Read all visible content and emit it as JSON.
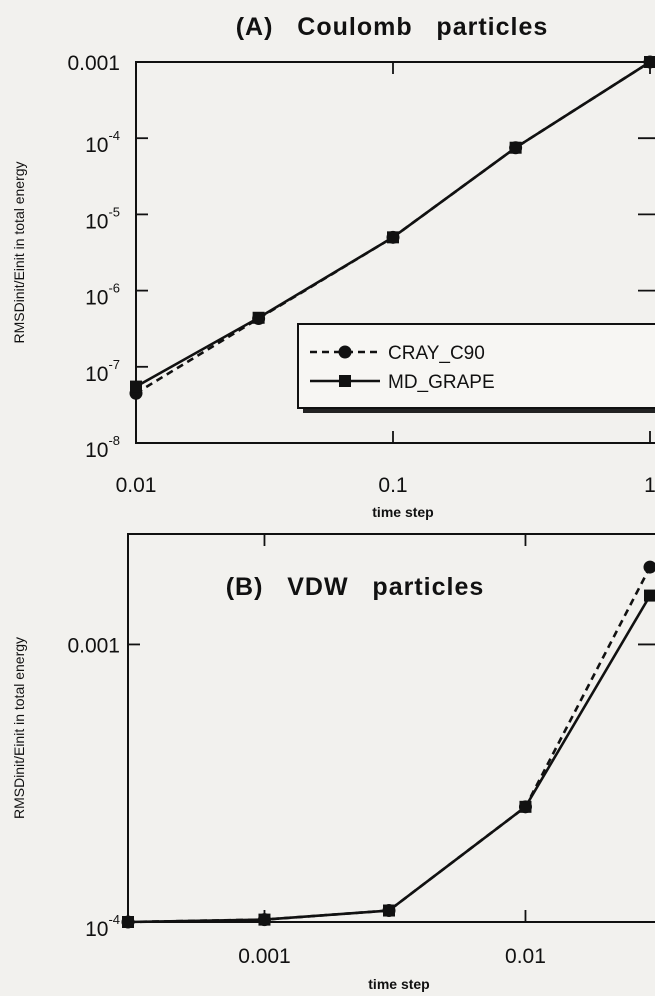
{
  "chart_data": [
    {
      "type": "line",
      "title": "(A)   Coulomb   particles",
      "xlabel": "time step",
      "ylabel": "RMSDinit/Einit in total energy",
      "xscale": "log",
      "yscale": "log",
      "xlim": [
        0.01,
        1
      ],
      "ylim": [
        1e-08,
        0.001
      ],
      "xticks": [
        {
          "value": 0.01,
          "label": "0.01"
        },
        {
          "value": 0.1,
          "label": "0.1"
        },
        {
          "value": 1,
          "label": "1"
        }
      ],
      "yticks": [
        {
          "value": 0.001,
          "base": "0.001",
          "exp": ""
        },
        {
          "value": 0.0001,
          "base": "10",
          "exp": "-4"
        },
        {
          "value": 1e-05,
          "base": "10",
          "exp": "-5"
        },
        {
          "value": 1e-06,
          "base": "10",
          "exp": "-6"
        },
        {
          "value": 1e-07,
          "base": "10",
          "exp": "-7"
        },
        {
          "value": 1e-08,
          "base": "10",
          "exp": "-8"
        }
      ],
      "legend": {
        "position": "center-right",
        "box": true
      },
      "series": [
        {
          "name": "CRAY_C90",
          "style": "dashed",
          "marker": "circle",
          "x": [
            0.01,
            0.03,
            0.1,
            0.3,
            1
          ],
          "y": [
            4.5e-08,
            4.3e-07,
            5e-06,
            7.5e-05,
            0.001
          ]
        },
        {
          "name": "MD_GRAPE",
          "style": "solid",
          "marker": "square",
          "x": [
            0.01,
            0.03,
            0.1,
            0.3,
            1
          ],
          "y": [
            5.5e-08,
            4.4e-07,
            5e-06,
            7.5e-05,
            0.001
          ]
        }
      ]
    },
    {
      "type": "line",
      "title": "(B)   VDW   particles",
      "xlabel": "time step",
      "ylabel": "RMSDinit/Einit in total energy",
      "xscale": "log",
      "yscale": "log",
      "xlim": [
        0.0003,
        0.03
      ],
      "ylim": [
        0.0001,
        0.0025
      ],
      "xticks": [
        {
          "value": 0.001,
          "label": "0.001"
        },
        {
          "value": 0.01,
          "label": "0.01"
        }
      ],
      "yticks": [
        {
          "value": 0.001,
          "base": "0.001",
          "exp": ""
        },
        {
          "value": 0.0001,
          "base": "10",
          "exp": "-4"
        }
      ],
      "legend": {
        "position": "none",
        "box": false
      },
      "series": [
        {
          "name": "CRAY_C90",
          "style": "dashed",
          "marker": "circle",
          "x": [
            0.0003,
            0.001,
            0.003,
            0.01,
            0.03
          ],
          "y": [
            0.0001,
            0.000102,
            0.00011,
            0.00026,
            0.0019
          ]
        },
        {
          "name": "MD_GRAPE",
          "style": "solid",
          "marker": "square",
          "x": [
            0.0003,
            0.001,
            0.003,
            0.01,
            0.03
          ],
          "y": [
            0.0001,
            0.000102,
            0.00011,
            0.00026,
            0.0015
          ]
        }
      ]
    }
  ]
}
